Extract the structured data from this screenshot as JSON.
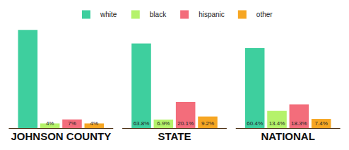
{
  "chart_data": {
    "type": "bar",
    "categories": [
      "JOHNSON COUNTY",
      "STATE",
      "NATIONAL"
    ],
    "series": [
      {
        "name": "white",
        "color": "#3ecf9e",
        "values": [
          74,
          63.8,
          60.4
        ],
        "value_labels": [
          null,
          "63.8%",
          "60.4%"
        ]
      },
      {
        "name": "black",
        "color": "#b5f26b",
        "values": [
          4,
          6.9,
          13.4
        ],
        "value_labels": [
          "4%",
          "6.9%",
          "13.4%"
        ]
      },
      {
        "name": "hispanic",
        "color": "#f36d7b",
        "values": [
          7,
          20.1,
          18.3
        ],
        "value_labels": [
          "7%",
          "20.1%",
          "18.3%"
        ]
      },
      {
        "name": "other",
        "color": "#f6a623",
        "values": [
          4,
          9.2,
          7.4
        ],
        "value_labels": [
          "4%",
          "9.2%",
          "7.4%"
        ]
      }
    ],
    "data_labels": true,
    "tick_labels": "x",
    "grid": false,
    "legend": "top"
  }
}
